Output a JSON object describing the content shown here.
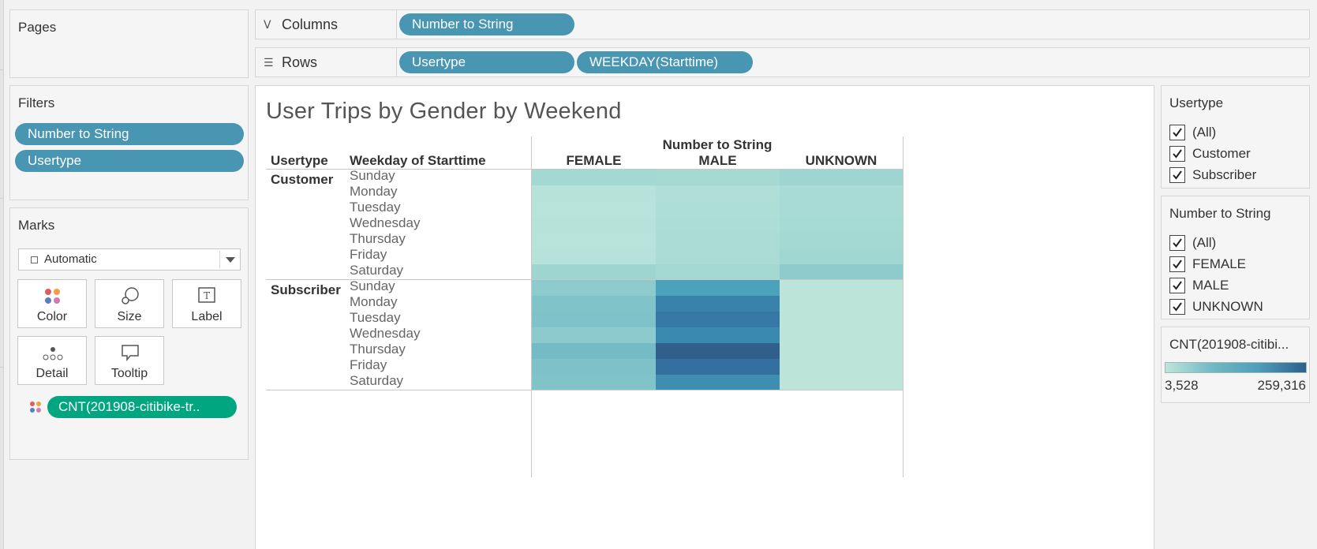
{
  "pages": {
    "title": "Pages"
  },
  "filters": {
    "title": "Filters",
    "pills": [
      "Number to String",
      "Usertype"
    ]
  },
  "marks": {
    "title": "Marks",
    "mark_type": "Automatic",
    "buttons": [
      "Color",
      "Size",
      "Label",
      "Detail",
      "Tooltip"
    ],
    "field_pill": "CNT(201908-citibike-tr.."
  },
  "columns_shelf": {
    "label": "Columns",
    "pills": [
      "Number to String"
    ]
  },
  "rows_shelf": {
    "label": "Rows",
    "pills": [
      "Usertype",
      "WEEKDAY(Starttime)"
    ]
  },
  "view": {
    "title": "User Trips by Gender by Weekend",
    "row_headers": [
      "Usertype",
      "Weekday of Starttime"
    ],
    "column_group_header": "Number to String",
    "columns": [
      "FEMALE",
      "MALE",
      "UNKNOWN"
    ],
    "usertypes": [
      "Customer",
      "Subscriber"
    ],
    "days": [
      "Sunday",
      "Monday",
      "Tuesday",
      "Wednesday",
      "Thursday",
      "Friday",
      "Saturday"
    ],
    "cell_colors": {
      "Customer": [
        [
          "#a4d8d2",
          "#a7d9d3",
          "#9fd5d1"
        ],
        [
          "#b6e2d9",
          "#afdfd7",
          "#a8dbd5"
        ],
        [
          "#b8e3da",
          "#aedfd6",
          "#a8dbd5"
        ],
        [
          "#b6e2d9",
          "#acddd6",
          "#a6dad4"
        ],
        [
          "#b7e3da",
          "#aadcd5",
          "#a3d8d3"
        ],
        [
          "#b6e2d9",
          "#aadcd5",
          "#a1d7d2"
        ],
        [
          "#9fd5d1",
          "#a3d8d3",
          "#8ecbcd"
        ]
      ],
      "Subscriber": [
        [
          "#8ecbcd",
          "#4ba3bb",
          "#bce4d9"
        ],
        [
          "#80c3c9",
          "#3882ab",
          "#bce4d9"
        ],
        [
          "#7fc2c9",
          "#3578a5",
          "#bce4d9"
        ],
        [
          "#8dcacd",
          "#3a8aaf",
          "#bce4d9"
        ],
        [
          "#74bbc6",
          "#2f5f8a",
          "#bce4d9"
        ],
        [
          "#7ec1c8",
          "#33709f",
          "#bce4d9"
        ],
        [
          "#80c3c9",
          "#3d8eb1",
          "#bce4d9"
        ]
      ]
    }
  },
  "usertype_filter": {
    "title": "Usertype",
    "options": [
      "(All)",
      "Customer",
      "Subscriber"
    ]
  },
  "gender_filter": {
    "title": "Number to String",
    "options": [
      "(All)",
      "FEMALE",
      "MALE",
      "UNKNOWN"
    ]
  },
  "color_legend": {
    "title": "CNT(201908-citibi...",
    "min": "3,528",
    "max": "259,316"
  }
}
